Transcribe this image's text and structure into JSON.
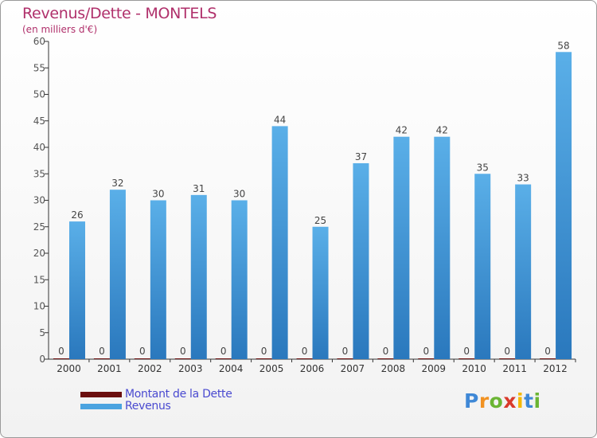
{
  "title": "Revenus/Dette - MONTELS",
  "subtitle": "(en milliers d'€)",
  "colors": {
    "dette": "#6b0f0f",
    "revenus": "#4aa3e0",
    "revenus_dark": "#2a78bd",
    "title": "#b0306b"
  },
  "legend": {
    "dette": "Montant de la Dette",
    "revenus": "Revenus"
  },
  "logo": {
    "text": "Proxiti",
    "letters": [
      "P",
      "r",
      "o",
      "x",
      "i",
      "t",
      "i"
    ],
    "colors": [
      "#3f88d6",
      "#f19222",
      "#6bb534",
      "#d93a2b",
      "#f5b800",
      "#3f88d6",
      "#6bb534"
    ]
  },
  "chart_data": {
    "type": "bar",
    "categories": [
      "2000",
      "2001",
      "2002",
      "2003",
      "2004",
      "2005",
      "2006",
      "2007",
      "2008",
      "2009",
      "2010",
      "2011",
      "2012"
    ],
    "series": [
      {
        "name": "Montant de la Dette",
        "values": [
          0,
          0,
          0,
          0,
          0,
          0,
          0,
          0,
          0,
          0,
          0,
          0,
          0
        ]
      },
      {
        "name": "Revenus",
        "values": [
          26,
          32,
          30,
          31,
          30,
          44,
          25,
          37,
          42,
          42,
          35,
          33,
          58
        ]
      }
    ],
    "ylim": [
      0,
      60
    ],
    "yticks": [
      0,
      5,
      10,
      15,
      20,
      25,
      30,
      35,
      40,
      45,
      50,
      55,
      60
    ],
    "grid": false,
    "legend_position": "bottom-left"
  }
}
